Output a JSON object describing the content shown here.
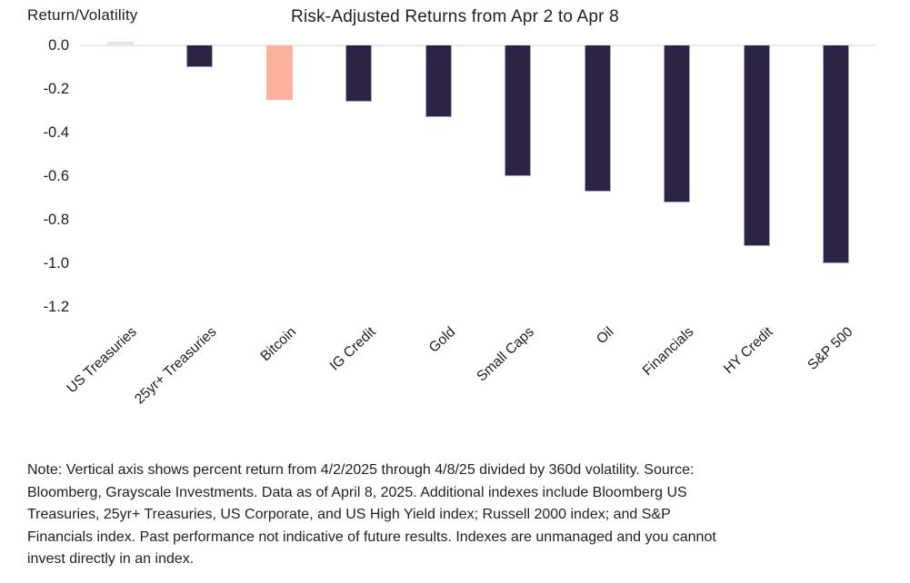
{
  "chart_data": {
    "type": "bar",
    "title": "Risk-Adjusted Returns from Apr 2 to Apr 8",
    "ylabel": "Return/Volatility",
    "xlabel": "",
    "categories": [
      "US Treasuries",
      "25yr+ Treasuries",
      "Bitcoin",
      "IG Credit",
      "Gold",
      "Small Caps",
      "Oil",
      "Financials",
      "HY Credit",
      "S&P 500"
    ],
    "values": [
      0.01,
      -0.1,
      -0.25,
      -0.26,
      -0.33,
      -0.6,
      -0.67,
      -0.72,
      -0.92,
      -1.0
    ],
    "bar_colors": [
      "#E3E3E3",
      "#2D2445",
      "#FFB29B",
      "#2D2445",
      "#2D2445",
      "#2D2445",
      "#2D2445",
      "#2D2445",
      "#2D2445",
      "#2D2445"
    ],
    "ylim": [
      -1.2,
      0.05
    ],
    "yticks": [
      0.0,
      -0.2,
      -0.4,
      -0.6,
      -0.8,
      -1.0,
      -1.2
    ],
    "ytick_labels": [
      "0.0",
      "-0.2",
      "-0.4",
      "-0.6",
      "-0.8",
      "-1.0",
      "-1.2"
    ],
    "grid": false,
    "legend": false,
    "colors": {
      "bar_default": "#2D2445",
      "bar_highlight": "#FFB29B",
      "bar_neutral": "#E3E3E3",
      "bar_edge": "#BAB5D1",
      "axis_line": "#E9E9E9",
      "text": "#1B1B1B"
    }
  },
  "note": {
    "lines": [
      "Note: Vertical axis shows percent return from 4/2/2025 through 4/8/25 divided by 360d volatility. Source:",
      "Bloomberg, Grayscale Investments. Data as of April 8, 2025. Additional indexes include Bloomberg US",
      "Treasuries, 25yr+ Treasuries, US Corporate, and US High Yield index; Russell 2000 index; and S&P",
      "Financials index. Past performance not indicative of future results. Indexes are unmanaged and you cannot",
      "invest directly in an index."
    ]
  }
}
